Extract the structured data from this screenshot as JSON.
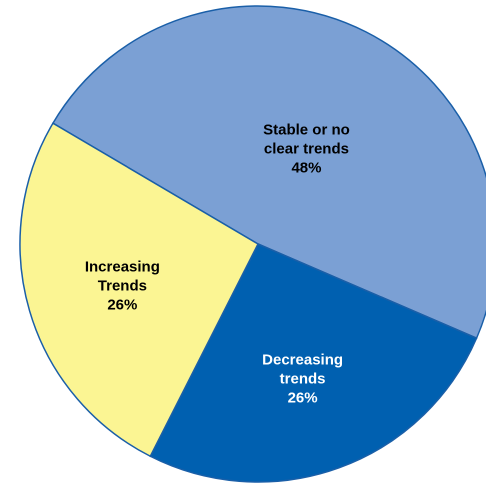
{
  "chart_data": {
    "type": "pie",
    "title": "",
    "slices": [
      {
        "label_lines": [
          "Stable or no",
          "clear trends"
        ],
        "value": 48,
        "value_label": "48%",
        "color": "#7ba0d4"
      },
      {
        "label_lines": [
          "Decreasing",
          "trends"
        ],
        "value": 26,
        "value_label": "26%",
        "color": "#0060b0"
      },
      {
        "label_lines": [
          "Increasing",
          "Trends"
        ],
        "value": 26,
        "value_label": "26%",
        "color": "#fbf593"
      }
    ],
    "label_colors": [
      "#000000",
      "#ffffff",
      "#000000"
    ],
    "outline_color": "#1a5fa8",
    "legend": "none",
    "labels_inside": true
  }
}
